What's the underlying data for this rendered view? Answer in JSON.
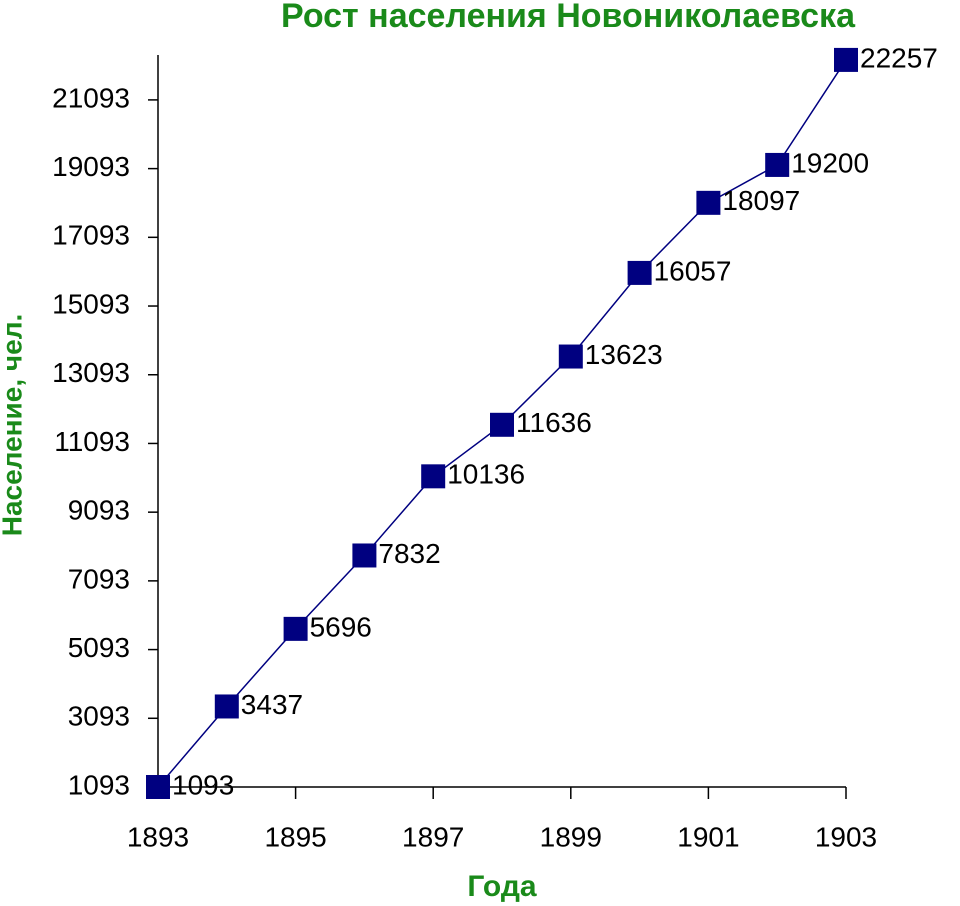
{
  "chart_data": {
    "type": "line",
    "title": "Рост населения Новониколаевска",
    "x_label": "Года",
    "y_label": "Население, чел.",
    "x": [
      1893,
      1894,
      1895,
      1896,
      1897,
      1898,
      1899,
      1900,
      1901,
      1902,
      1903
    ],
    "series": [
      {
        "name": "Население",
        "color": "#000080",
        "values": [
          1093,
          3437,
          5696,
          7832,
          10136,
          11636,
          13623,
          16057,
          18097,
          19200,
          22257
        ]
      }
    ],
    "xlim": [
      1893,
      1903
    ],
    "xticks": [
      1893,
      1895,
      1897,
      1899,
      1901,
      1903
    ],
    "ylim": [
      1093,
      22400
    ],
    "yticks": [
      1093,
      3093,
      5093,
      7093,
      9093,
      11093,
      13093,
      15093,
      17093,
      19093,
      21093
    ],
    "grid": false
  }
}
